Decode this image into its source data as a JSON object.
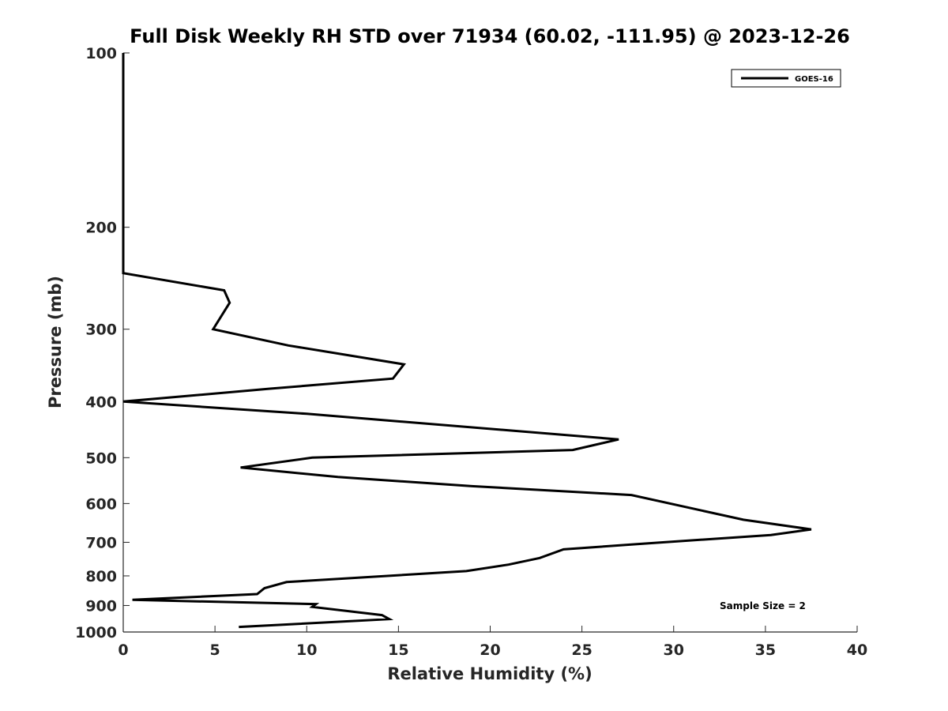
{
  "chart_data": {
    "type": "line",
    "title": "Full Disk Weekly RH STD over 71934 (60.02, -111.95) @ 2023-12-26",
    "xlabel": "Relative Humidity (%)",
    "ylabel": "Pressure (mb)",
    "xlim": [
      0,
      40
    ],
    "ylim": [
      100,
      1000
    ],
    "y_scale": "log",
    "y_reversed": true,
    "grid": false,
    "legend_position": "top-right",
    "x_ticks": [
      0,
      5,
      10,
      15,
      20,
      25,
      30,
      35,
      40
    ],
    "y_ticks": [
      100,
      200,
      300,
      400,
      500,
      600,
      700,
      800,
      900,
      1000
    ],
    "annotation": "Sample Size = 2",
    "series": [
      {
        "name": "GOES-16",
        "color": "#000000",
        "x": [
          0,
          0,
          0,
          0,
          5.5,
          5.8,
          4.9,
          9.0,
          15.3,
          14.7,
          8.0,
          0,
          10.0,
          27.0,
          24.5,
          10.3,
          6.4,
          11.7,
          19.0,
          27.7,
          33.8,
          37.5,
          35.3,
          28.0,
          24.0,
          22.7,
          21.0,
          18.7,
          8.9,
          7.7,
          7.3,
          0.5,
          10.5,
          10.3,
          14.1,
          14.5,
          6.3
        ],
        "y": [
          100,
          200,
          220,
          240,
          257,
          270,
          300,
          320,
          345,
          365,
          380,
          400,
          420,
          465,
          485,
          500,
          520,
          540,
          560,
          580,
          640,
          665,
          680,
          705,
          720,
          745,
          765,
          785,
          820,
          840,
          860,
          880,
          895,
          905,
          935,
          950,
          980
        ]
      }
    ]
  }
}
